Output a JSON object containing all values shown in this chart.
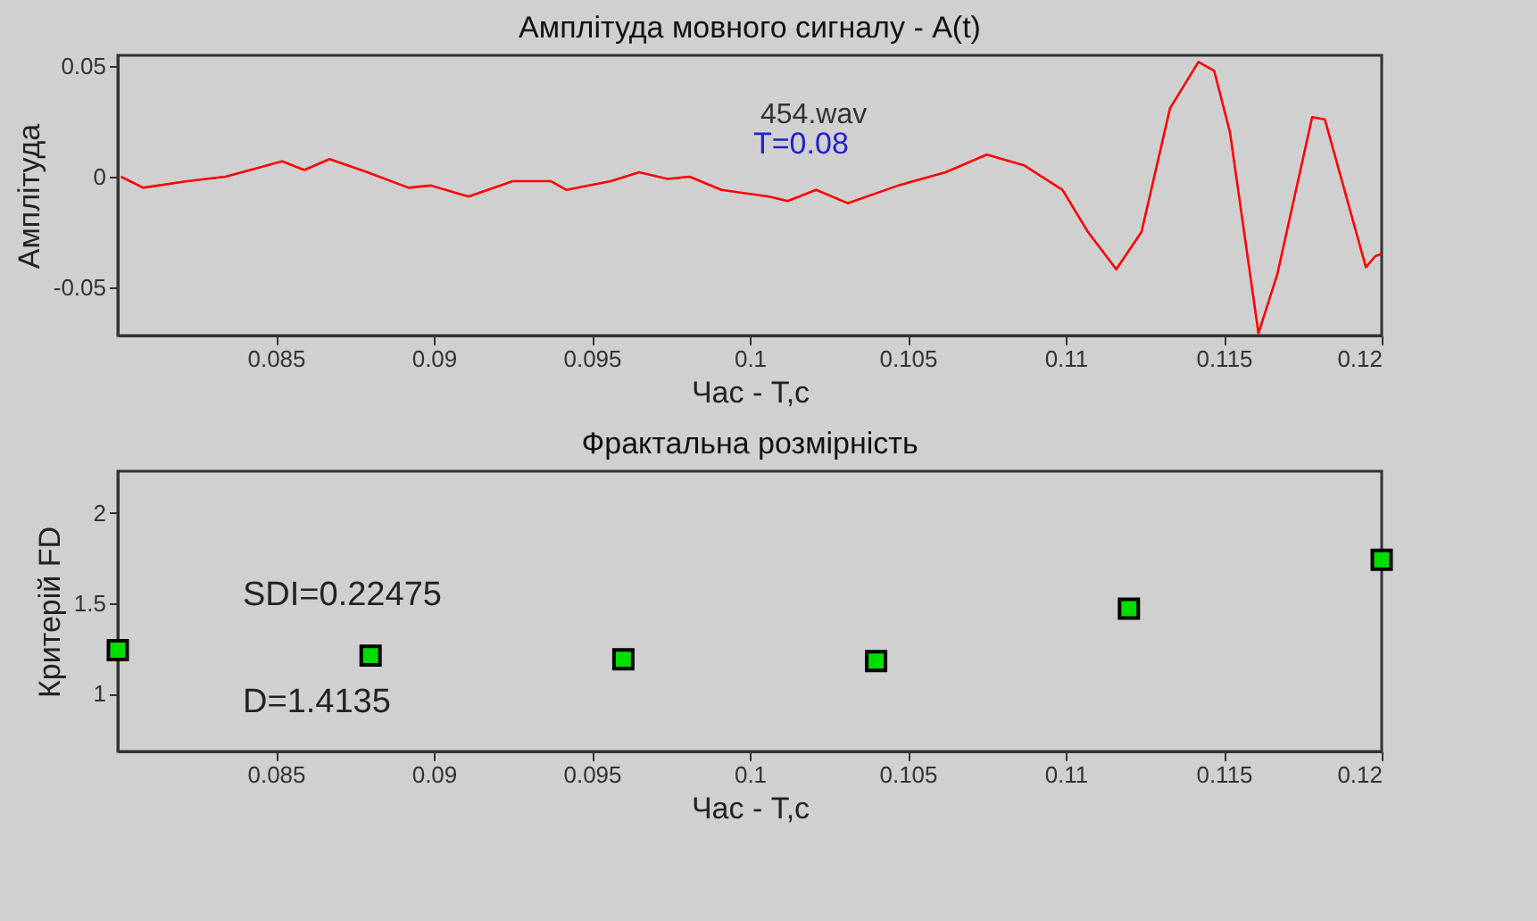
{
  "chart_data": [
    {
      "type": "line",
      "title": "Амплітуда мовного сигналу - A(t)",
      "xlabel": "Час - T,с",
      "ylabel": "Амплітуда",
      "x": [
        0.0801,
        0.0808,
        0.0822,
        0.0834,
        0.0852,
        0.0859,
        0.0867,
        0.0879,
        0.0892,
        0.0899,
        0.0911,
        0.0925,
        0.0937,
        0.0942,
        0.0956,
        0.0965,
        0.0974,
        0.0981,
        0.0991,
        0.1006,
        0.1012,
        0.1021,
        0.1031,
        0.1047,
        0.1062,
        0.1075,
        0.1087,
        0.1099,
        0.1107,
        0.1116,
        0.1124,
        0.1133,
        0.1142,
        0.1147,
        0.1152,
        0.1161,
        0.1167,
        0.1178,
        0.1182,
        0.1195,
        0.1198,
        0.12
      ],
      "series": [
        {
          "color": "#ff0000",
          "values": [
            0,
            -0.005,
            -0.002,
            0,
            0.007,
            0.003,
            0.008,
            0.002,
            -0.005,
            -0.004,
            -0.009,
            -0.002,
            -0.002,
            -0.006,
            -0.002,
            0.002,
            -0.001,
            0,
            -0.006,
            -0.009,
            -0.011,
            -0.006,
            -0.012,
            -0.004,
            0.002,
            0.01,
            0.005,
            -0.006,
            -0.025,
            -0.042,
            -0.025,
            0.031,
            0.052,
            0.048,
            0.02,
            -0.071,
            -0.044,
            0.027,
            0.026,
            -0.041,
            -0.036,
            -0.035
          ]
        }
      ],
      "xlim": [
        0.08,
        0.12
      ],
      "xticks": [
        0.085,
        0.09,
        0.095,
        0.1,
        0.105,
        0.11,
        0.115,
        0.12
      ],
      "ylim": [
        -0.072,
        0.055
      ],
      "yticks": [
        -0.05,
        0,
        0.05
      ],
      "marker": "none",
      "annotations": [
        "454.wav",
        "T=0.08"
      ]
    },
    {
      "type": "scatter",
      "title": "Фрактальна розмірність",
      "xlabel": "Час - T,с",
      "ylabel": "Критерій FD",
      "x": [
        0.08,
        0.088,
        0.096,
        0.104,
        0.112,
        0.12
      ],
      "series": [
        {
          "color": "#00dd00",
          "values": [
            1.24,
            1.21,
            1.19,
            1.18,
            1.47,
            1.74
          ]
        }
      ],
      "xlim": [
        0.08,
        0.12
      ],
      "xticks": [
        0.085,
        0.09,
        0.095,
        0.1,
        0.105,
        0.11,
        0.115,
        0.12
      ],
      "ylim": [
        0.68,
        2.23
      ],
      "yticks": [
        1,
        1.5,
        2
      ],
      "marker": "square",
      "annotations": [
        "SDI=0.22475",
        "D=1.4135"
      ]
    }
  ]
}
